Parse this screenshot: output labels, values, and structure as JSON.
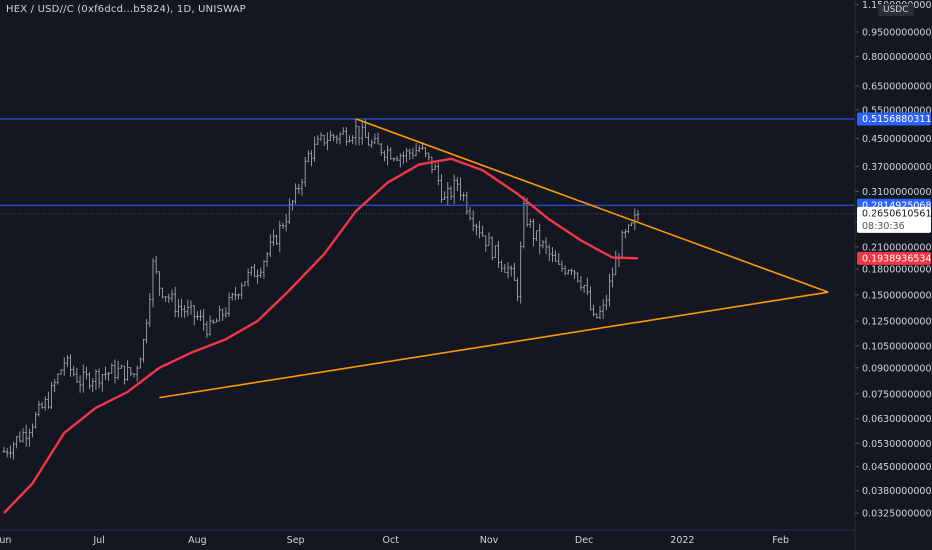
{
  "header": {
    "title": "HEX / USD//C (0xf6dcd...b5824), 1D, UNISWAP",
    "unit": "USDC"
  },
  "colors": {
    "background": "#131722",
    "candle": "#b2b5be",
    "ma": "#f23645",
    "trendline": "#ff9800",
    "hline": "#2962ff",
    "axis_text": "#d1d4dc"
  },
  "chart_data": {
    "type": "ohlc-bar",
    "scale": "log",
    "x_axis": {
      "labels": [
        "Jun",
        "Jul",
        "Aug",
        "Sep",
        "Oct",
        "Nov",
        "Dec",
        "2022",
        "Feb"
      ],
      "dates": [
        "2021-06-01",
        "2021-07-01",
        "2021-08-01",
        "2021-09-01",
        "2021-10-01",
        "2021-11-01",
        "2021-12-01",
        "2022-01-01",
        "2022-02-01"
      ]
    },
    "y_axis": {
      "ticks": [
        {
          "value": 1.15,
          "label": "1.1500000000"
        },
        {
          "value": 0.95,
          "label": "0.9500000000"
        },
        {
          "value": 0.8,
          "label": "0.8000000000"
        },
        {
          "value": 0.65,
          "label": "0.6500000000"
        },
        {
          "value": 0.55,
          "label": "0.5500000000"
        },
        {
          "value": 0.45,
          "label": "0.4500000000"
        },
        {
          "value": 0.37,
          "label": "0.3700000000"
        },
        {
          "value": 0.31,
          "label": "0.3100000000"
        },
        {
          "value": 0.25,
          "label": "0.2500000000"
        },
        {
          "value": 0.21,
          "label": "0.2100000000"
        },
        {
          "value": 0.18,
          "label": "0.1800000000"
        },
        {
          "value": 0.15,
          "label": "0.1500000000"
        },
        {
          "value": 0.125,
          "label": "0.1250000000"
        },
        {
          "value": 0.105,
          "label": "0.1050000000"
        },
        {
          "value": 0.09,
          "label": "0.0900000000"
        },
        {
          "value": 0.075,
          "label": "0.0750000000"
        },
        {
          "value": 0.063,
          "label": "0.0630000000"
        },
        {
          "value": 0.053,
          "label": "0.0530000000"
        },
        {
          "value": 0.045,
          "label": "0.0450000000"
        },
        {
          "value": 0.038,
          "label": "0.0380000000"
        },
        {
          "value": 0.0325,
          "label": "0.0325000000"
        }
      ]
    },
    "price_labels": [
      {
        "value": 0.5156880311,
        "label": "0.5156880311",
        "kind": "hline"
      },
      {
        "value": 0.2814925068,
        "label": "0.2814925068",
        "kind": "hline"
      },
      {
        "value": 0.2650610561,
        "label": "0.2650610561",
        "countdown": "08:30:36",
        "kind": "last"
      },
      {
        "value": 0.1938936534,
        "label": "0.1938936534",
        "kind": "ma"
      }
    ],
    "horizontal_lines": [
      0.5156880311,
      0.2814925068
    ],
    "trendlines": [
      {
        "from": {
          "date": "2021-09-20",
          "value": 0.516
        },
        "to": {
          "date": "2022-02-16",
          "value": 0.153
        }
      },
      {
        "from": {
          "date": "2021-07-20",
          "value": 0.073
        },
        "to": {
          "date": "2022-02-16",
          "value": 0.153
        }
      }
    ],
    "closes": [
      {
        "date": "2021-06-01",
        "value": 0.05
      },
      {
        "date": "2021-06-08",
        "value": 0.058
      },
      {
        "date": "2021-06-15",
        "value": 0.072
      },
      {
        "date": "2021-06-20",
        "value": 0.094
      },
      {
        "date": "2021-06-25",
        "value": 0.082
      },
      {
        "date": "2021-07-01",
        "value": 0.086
      },
      {
        "date": "2021-07-07",
        "value": 0.088
      },
      {
        "date": "2021-07-12",
        "value": 0.086
      },
      {
        "date": "2021-07-15",
        "value": 0.108
      },
      {
        "date": "2021-07-18",
        "value": 0.185
      },
      {
        "date": "2021-07-20",
        "value": 0.16
      },
      {
        "date": "2021-07-25",
        "value": 0.14
      },
      {
        "date": "2021-08-01",
        "value": 0.128
      },
      {
        "date": "2021-08-05",
        "value": 0.118
      },
      {
        "date": "2021-08-08",
        "value": 0.128
      },
      {
        "date": "2021-08-12",
        "value": 0.145
      },
      {
        "date": "2021-08-15",
        "value": 0.165
      },
      {
        "date": "2021-08-20",
        "value": 0.18
      },
      {
        "date": "2021-08-25",
        "value": 0.215
      },
      {
        "date": "2021-08-28",
        "value": 0.25
      },
      {
        "date": "2021-09-01",
        "value": 0.3
      },
      {
        "date": "2021-09-05",
        "value": 0.4
      },
      {
        "date": "2021-09-10",
        "value": 0.45
      },
      {
        "date": "2021-09-15",
        "value": 0.46
      },
      {
        "date": "2021-09-20",
        "value": 0.48
      },
      {
        "date": "2021-09-25",
        "value": 0.43
      },
      {
        "date": "2021-10-01",
        "value": 0.41
      },
      {
        "date": "2021-10-05",
        "value": 0.4
      },
      {
        "date": "2021-10-10",
        "value": 0.42
      },
      {
        "date": "2021-10-15",
        "value": 0.36
      },
      {
        "date": "2021-10-18",
        "value": 0.29
      },
      {
        "date": "2021-10-22",
        "value": 0.33
      },
      {
        "date": "2021-10-26",
        "value": 0.27
      },
      {
        "date": "2021-10-30",
        "value": 0.23
      },
      {
        "date": "2021-11-03",
        "value": 0.2
      },
      {
        "date": "2021-11-07",
        "value": 0.18
      },
      {
        "date": "2021-11-10",
        "value": 0.155
      },
      {
        "date": "2021-11-12",
        "value": 0.27
      },
      {
        "date": "2021-11-15",
        "value": 0.23
      },
      {
        "date": "2021-11-19",
        "value": 0.205
      },
      {
        "date": "2021-11-23",
        "value": 0.18
      },
      {
        "date": "2021-11-27",
        "value": 0.185
      },
      {
        "date": "2021-12-01",
        "value": 0.16
      },
      {
        "date": "2021-12-04",
        "value": 0.125
      },
      {
        "date": "2021-12-07",
        "value": 0.135
      },
      {
        "date": "2021-12-10",
        "value": 0.175
      },
      {
        "date": "2021-12-13",
        "value": 0.22
      },
      {
        "date": "2021-12-16",
        "value": 0.24
      },
      {
        "date": "2021-12-18",
        "value": 0.265
      }
    ],
    "moving_average": [
      {
        "date": "2021-06-01",
        "value": 0.0325
      },
      {
        "date": "2021-06-10",
        "value": 0.04
      },
      {
        "date": "2021-06-20",
        "value": 0.057
      },
      {
        "date": "2021-06-30",
        "value": 0.068
      },
      {
        "date": "2021-07-10",
        "value": 0.076
      },
      {
        "date": "2021-07-20",
        "value": 0.09
      },
      {
        "date": "2021-07-30",
        "value": 0.1
      },
      {
        "date": "2021-08-10",
        "value": 0.11
      },
      {
        "date": "2021-08-20",
        "value": 0.125
      },
      {
        "date": "2021-08-30",
        "value": 0.155
      },
      {
        "date": "2021-09-10",
        "value": 0.2
      },
      {
        "date": "2021-09-20",
        "value": 0.27
      },
      {
        "date": "2021-09-30",
        "value": 0.33
      },
      {
        "date": "2021-10-10",
        "value": 0.375
      },
      {
        "date": "2021-10-20",
        "value": 0.39
      },
      {
        "date": "2021-10-30",
        "value": 0.36
      },
      {
        "date": "2021-11-10",
        "value": 0.305
      },
      {
        "date": "2021-11-20",
        "value": 0.255
      },
      {
        "date": "2021-11-30",
        "value": 0.22
      },
      {
        "date": "2021-12-10",
        "value": 0.195
      },
      {
        "date": "2021-12-18",
        "value": 0.194
      }
    ]
  }
}
